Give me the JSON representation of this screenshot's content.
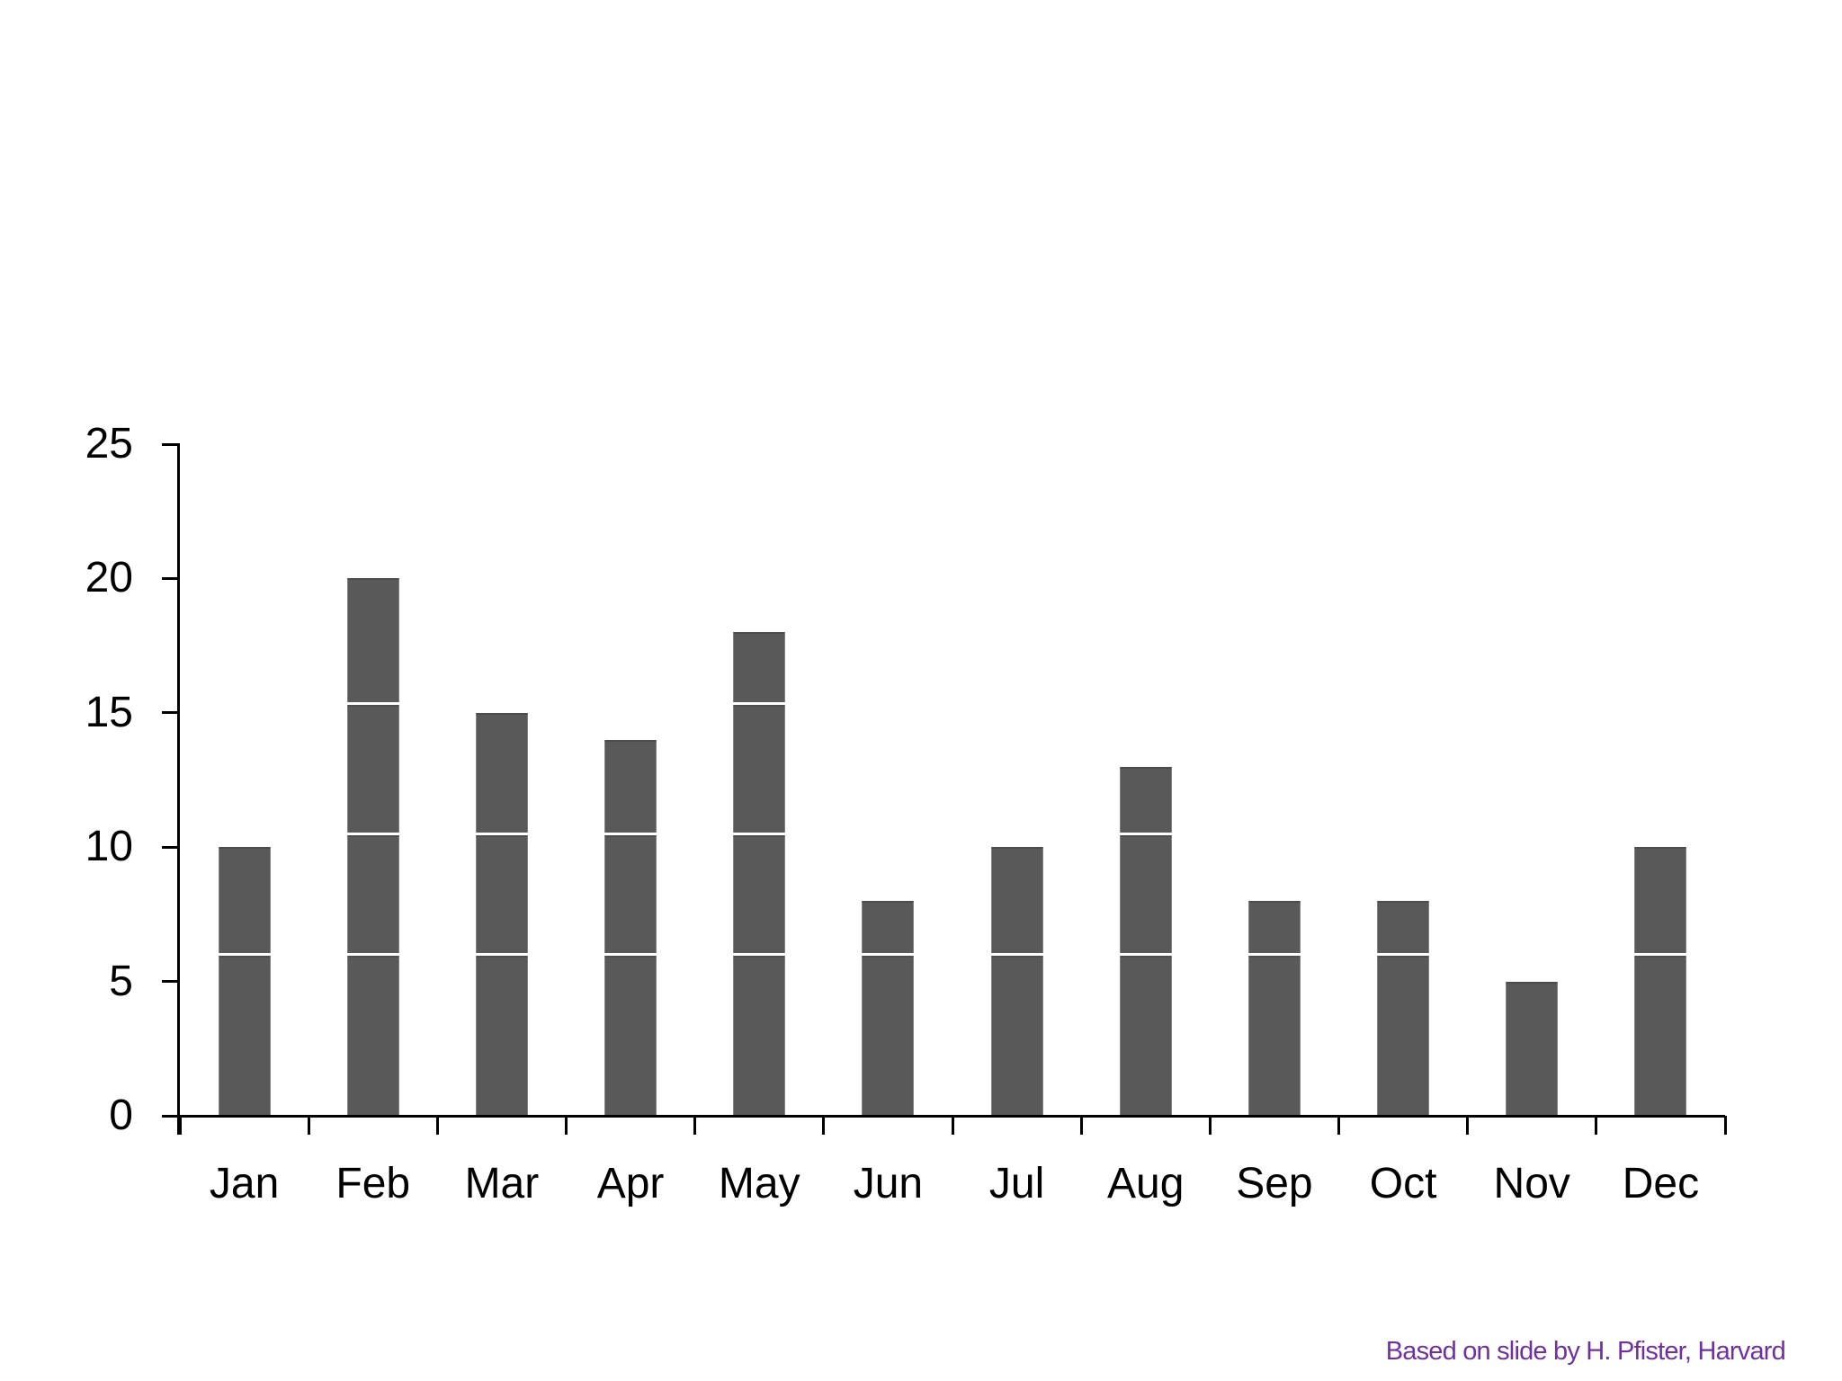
{
  "page": {
    "background_color": "#ffffff"
  },
  "caption": {
    "text": "Based on slide by H. Pfister, Harvard",
    "color": "#7030A0"
  },
  "chart_data": {
    "type": "bar",
    "title": "",
    "xlabel": "",
    "ylabel": "",
    "categories": [
      "Jan",
      "Feb",
      "Mar",
      "Apr",
      "May",
      "Jun",
      "Jul",
      "Aug",
      "Sep",
      "Oct",
      "Nov",
      "Dec"
    ],
    "values": [
      10,
      20,
      15,
      14,
      18,
      8,
      10,
      13,
      8,
      8,
      5,
      10
    ],
    "ylim": [
      0,
      25
    ],
    "y_ticks": [
      0,
      5,
      10,
      15,
      20,
      25
    ],
    "grid": false,
    "legend": false,
    "bar_color": "#595959",
    "axis_color": "#000000",
    "tick_label_color": "#000000",
    "segment_line_values": [
      6,
      10.5,
      15.35
    ],
    "segment_line_color": "#ffffff"
  }
}
